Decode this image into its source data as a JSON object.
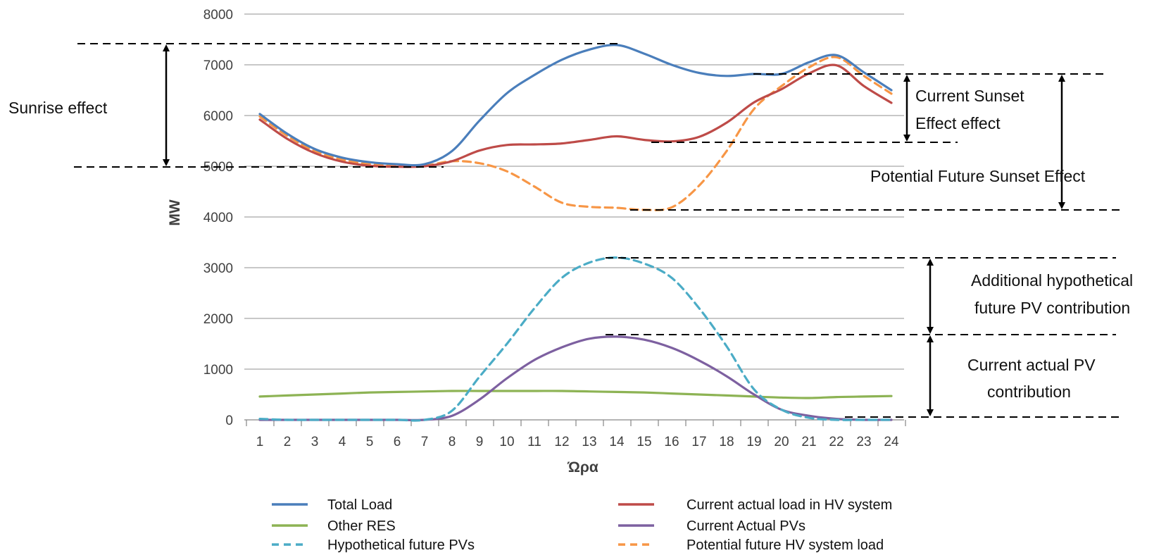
{
  "chart_data": {
    "type": "line",
    "title": "",
    "xlabel": "Ώρα",
    "ylabel": "MW",
    "x": [
      1,
      2,
      3,
      4,
      5,
      6,
      7,
      8,
      9,
      10,
      11,
      12,
      13,
      14,
      15,
      16,
      17,
      18,
      19,
      20,
      21,
      22,
      23,
      24
    ],
    "xlim": [
      1,
      24
    ],
    "ylim": [
      0,
      8000
    ],
    "yticks": [
      0,
      1000,
      2000,
      3000,
      4000,
      5000,
      6000,
      7000,
      8000
    ],
    "grid": true,
    "legend_position": "bottom",
    "series": [
      {
        "name": "Total Load",
        "color": "#4a7ebb",
        "dash": false,
        "values": [
          6030,
          5640,
          5340,
          5170,
          5080,
          5040,
          5040,
          5300,
          5900,
          6440,
          6800,
          7100,
          7300,
          7390,
          7220,
          7000,
          6840,
          6780,
          6820,
          6820,
          7050,
          7190,
          6850,
          6500
        ]
      },
      {
        "name": "Current actual load in HV system",
        "color": "#be4b48",
        "dash": false,
        "values": [
          5920,
          5540,
          5260,
          5090,
          5010,
          4990,
          5000,
          5100,
          5310,
          5420,
          5430,
          5450,
          5520,
          5590,
          5520,
          5490,
          5580,
          5860,
          6260,
          6520,
          6830,
          6990,
          6580,
          6250
        ]
      },
      {
        "name": "Other RES",
        "color": "#8db354",
        "dash": false,
        "values": [
          460,
          480,
          500,
          520,
          540,
          550,
          560,
          570,
          570,
          570,
          570,
          570,
          560,
          550,
          540,
          520,
          500,
          480,
          460,
          440,
          430,
          450,
          460,
          470
        ]
      },
      {
        "name": "Current Actual PVs",
        "color": "#7d60a0",
        "dash": false,
        "values": [
          0,
          0,
          0,
          0,
          0,
          0,
          0,
          80,
          400,
          820,
          1180,
          1430,
          1600,
          1640,
          1580,
          1420,
          1170,
          860,
          500,
          200,
          80,
          20,
          0,
          0
        ]
      },
      {
        "name": "Hypothetical future PVs",
        "color": "#4bacc6",
        "dash": true,
        "values": [
          20,
          0,
          0,
          0,
          0,
          0,
          0,
          180,
          850,
          1500,
          2200,
          2800,
          3100,
          3200,
          3080,
          2800,
          2200,
          1450,
          600,
          200,
          40,
          0,
          0,
          0
        ]
      },
      {
        "name": "Potential future HV system load",
        "color": "#f79646",
        "dash": true,
        "values": [
          5980,
          5600,
          5300,
          5130,
          5040,
          5010,
          5010,
          5100,
          5060,
          4900,
          4600,
          4280,
          4200,
          4180,
          4140,
          4190,
          4620,
          5300,
          6130,
          6580,
          6950,
          7150,
          6780,
          6430
        ]
      }
    ],
    "annotations": {
      "sunrise": "Sunrise effect",
      "current_sunset_line1": "Current Sunset",
      "current_sunset_line2": "Effect effect",
      "future_sunset": "Potential  Future Sunset Effect",
      "additional_pv_line1": "Additional hypothetical",
      "additional_pv_line2": "future PV contribution",
      "current_pv_line1": "Current actual PV",
      "current_pv_line2": "contribution"
    }
  }
}
